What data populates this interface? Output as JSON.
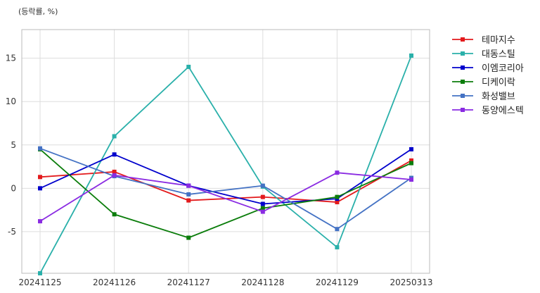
{
  "chart_data": {
    "type": "line",
    "unit_label": "(등락률, %)",
    "categories": [
      "20241125",
      "20241126",
      "20241127",
      "20241128",
      "20241129",
      "20250313"
    ],
    "ylim": [
      -9.8,
      18.3
    ],
    "yticks": [
      -5,
      0,
      5,
      10,
      15
    ],
    "grid": true,
    "legend_position": "outside-top-right",
    "series": [
      {
        "name": "테마지수",
        "color": "#e31a1c",
        "values": [
          1.3,
          1.9,
          -1.4,
          -1.0,
          -1.6,
          3.2
        ]
      },
      {
        "name": "대동스틸",
        "color": "#2ab0aa",
        "values": [
          -9.8,
          6.0,
          14.0,
          0.2,
          -6.8,
          15.3
        ]
      },
      {
        "name": "이엠코리아",
        "color": "#0000cc",
        "values": [
          0.0,
          3.9,
          0.3,
          -1.8,
          -1.2,
          4.5
        ]
      },
      {
        "name": "디케이락",
        "color": "#0b7d0b",
        "values": [
          4.5,
          -3.0,
          -5.7,
          -2.3,
          -1.0,
          2.9
        ]
      },
      {
        "name": "화성밸브",
        "color": "#4472c4",
        "values": [
          4.6,
          1.4,
          -0.7,
          0.3,
          -4.7,
          1.2
        ]
      },
      {
        "name": "동양에스텍",
        "color": "#8a2be2",
        "values": [
          -3.8,
          1.5,
          0.3,
          -2.7,
          1.8,
          1.0
        ]
      }
    ]
  }
}
